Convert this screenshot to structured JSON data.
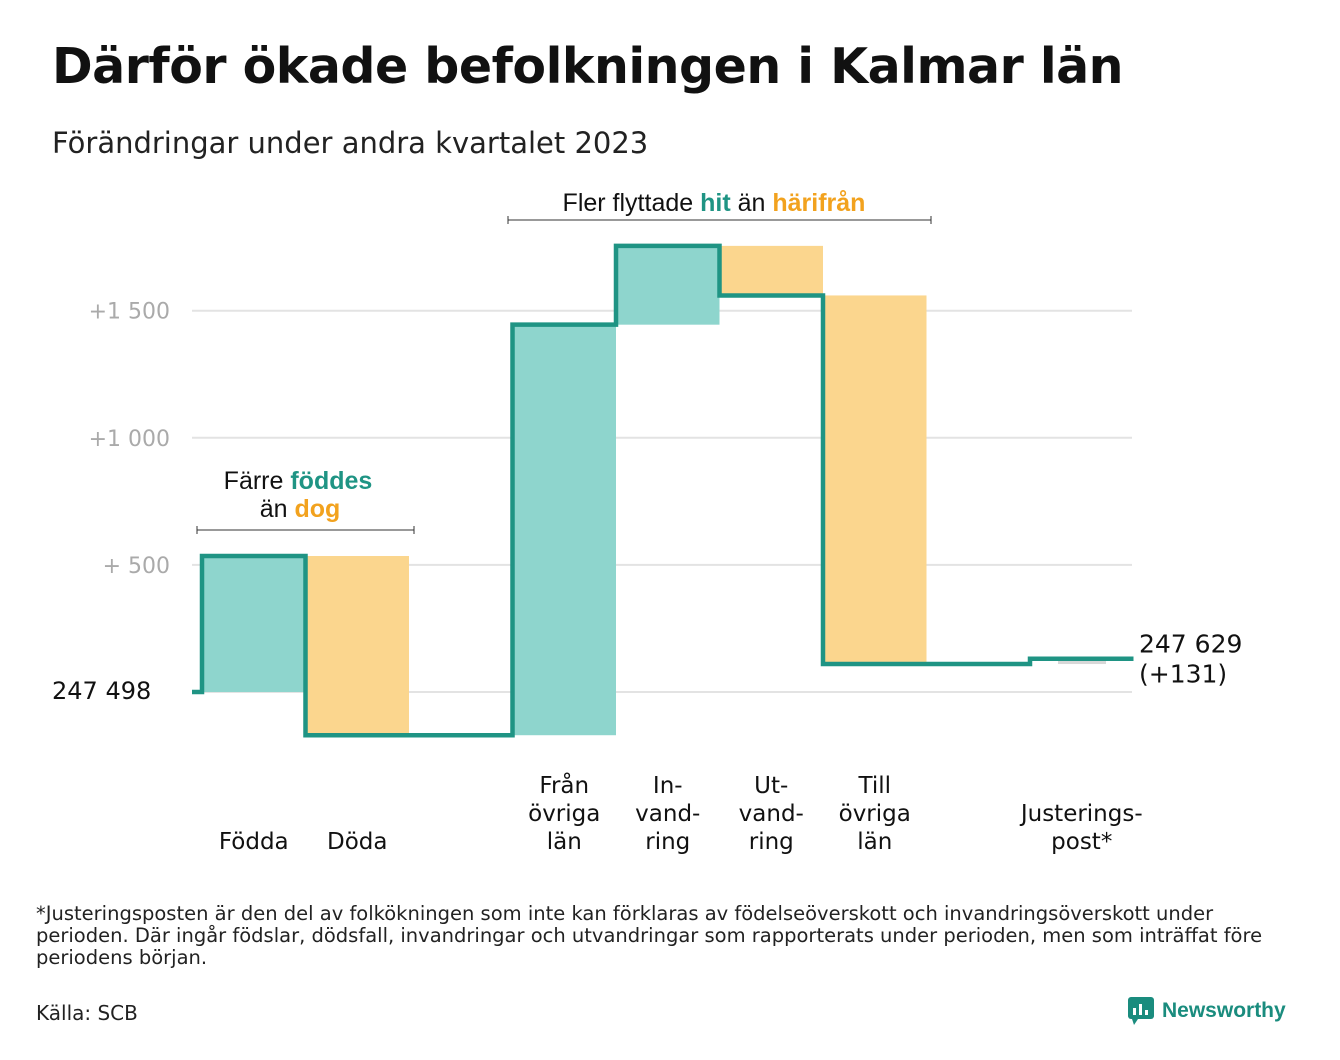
{
  "title": "Därför ökade befolkningen i Kalmar län",
  "subtitle": "Förändringar under andra kvartalet 2023",
  "colors": {
    "inflow": "#8ed5cd",
    "outflow": "#fbd68e",
    "line": "#1f9484",
    "inflow_text": "#1f9484",
    "outflow_text": "#f2a21e",
    "grid": "#e3e3e3",
    "tick": "#aaaaaa"
  },
  "chart_data": {
    "type": "waterfall",
    "start_value": 247498,
    "start_label": "247 498",
    "end_label_line1": "247 629",
    "end_label_line2": "(+131)",
    "yticks": [
      {
        "value": 1500,
        "label": "+1  500"
      },
      {
        "value": 1000,
        "label": "+1  000"
      },
      {
        "value": 500,
        "label": "+  500"
      }
    ],
    "ylim": [
      -200,
      1800
    ],
    "steps": [
      {
        "label": [
          "Födda"
        ],
        "value": 535,
        "kind": "in"
      },
      {
        "label": [
          "Döda"
        ],
        "value": -705,
        "kind": "out"
      },
      {
        "label": [
          ""
        ],
        "value": 0,
        "kind": "gap"
      },
      {
        "label": [
          "Från",
          "övriga",
          "län"
        ],
        "value": 1615,
        "kind": "in"
      },
      {
        "label": [
          "In-",
          "vand-",
          "ring"
        ],
        "value": 310,
        "kind": "in"
      },
      {
        "label": [
          "Ut-",
          "vand-",
          "ring"
        ],
        "value": -195,
        "kind": "out"
      },
      {
        "label": [
          "Till",
          "övriga",
          "län"
        ],
        "value": -1450,
        "kind": "out"
      },
      {
        "label": [
          ""
        ],
        "value": 0,
        "kind": "gap"
      },
      {
        "label": [
          "Justerings-",
          "post*"
        ],
        "value": 21,
        "kind": "adjust"
      }
    ],
    "annotations": [
      {
        "parts": [
          {
            "text": "Färre ",
            "tone": "plain"
          },
          {
            "text": "föddes",
            "tone": "in"
          },
          {
            "text": "än ",
            "tone": "plain",
            "newline": true
          },
          {
            "text": "dog",
            "tone": "out"
          }
        ]
      },
      {
        "parts": [
          {
            "text": "Fler flyttade ",
            "tone": "plain"
          },
          {
            "text": "hit",
            "tone": "in"
          },
          {
            "text": " än ",
            "tone": "plain"
          },
          {
            "text": "härifrån",
            "tone": "out"
          }
        ]
      }
    ]
  },
  "footnote": "*Justeringsposten är den del av folkökningen som inte kan förklaras av födelseöverskott och invandringsöverskott under perioden. Där ingår födslar, dödsfall, invandringar och utvandringar som rapporterats under perioden, men som inträffat före periodens början.",
  "source": "Källa: SCB",
  "brand": "Newsworthy"
}
